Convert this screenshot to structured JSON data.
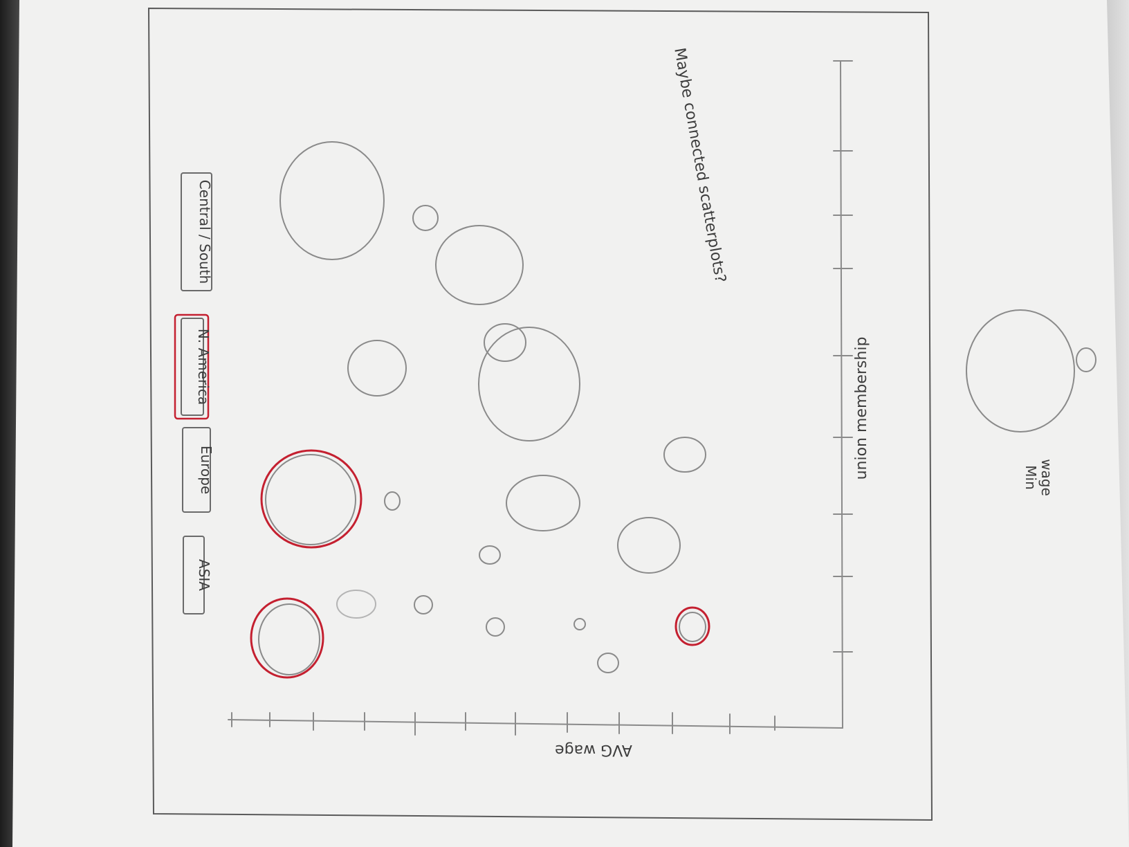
{
  "legend_buttons": [
    {
      "label": "ASIA",
      "highlighted": false
    },
    {
      "label": "Europe",
      "highlighted": false
    },
    {
      "label": "N. America",
      "highlighted": true
    },
    {
      "label": "Central / South",
      "highlighted": false
    }
  ],
  "axis_labels": {
    "y_axis": "AVG wage",
    "x_axis": "union membership"
  },
  "note": "Maybe connected scatterplots?",
  "size_legend": {
    "label_line1": "Min",
    "label_line2": "wage"
  },
  "colors": {
    "paper": "#f1f1f0",
    "pencil": "#8a8a8a",
    "highlight_red": "#c42030"
  }
}
